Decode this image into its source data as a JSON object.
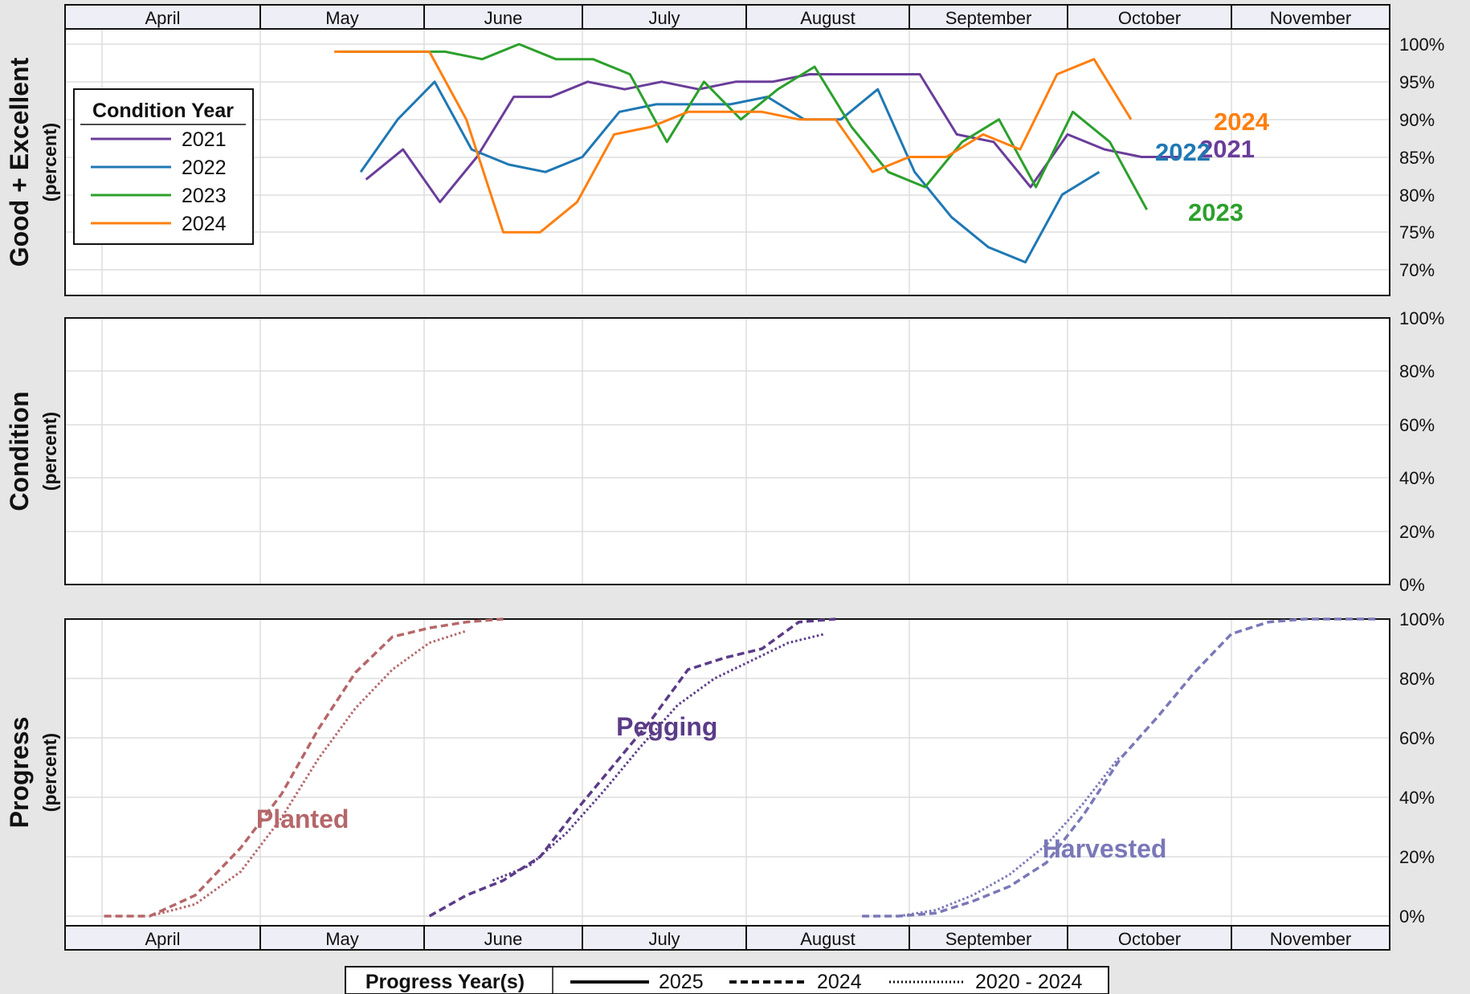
{
  "months": [
    "April",
    "May",
    "June",
    "July",
    "August",
    "September",
    "October",
    "November"
  ],
  "colors": {
    "y2021": "#6a3d9a",
    "y2022": "#1f78b4",
    "y2023": "#2ca02c",
    "y2024": "#ff7f0e",
    "planted": "#b5676a",
    "pegging": "#5b3c88",
    "harvested": "#7a78b8"
  },
  "chart_data": [
    {
      "type": "line",
      "panel": "Good + Excellent",
      "ylabel": "Good + Excellent",
      "ysub": "(percent)",
      "x_unit": "week of season (approx. calendar position)",
      "yticks": [
        "100%",
        "95%",
        "90%",
        "85%",
        "80%",
        "75%",
        "70%"
      ],
      "ytick_values": [
        100,
        95,
        90,
        85,
        80,
        75,
        70
      ],
      "ylim": [
        66.5,
        101.5
      ],
      "grid": true,
      "legend": {
        "title": "Condition Year",
        "position": "top-left",
        "entries": [
          "2021",
          "2022",
          "2023",
          "2024"
        ]
      },
      "series": [
        {
          "name": "2021",
          "color_key": "y2021",
          "end_label": "2021",
          "points": [
            [
              "2021-05-21",
              82
            ],
            [
              "2021-05-28",
              86
            ],
            [
              "2021-06-04",
              79
            ],
            [
              "2021-06-11",
              85
            ],
            [
              "2021-06-18",
              93
            ],
            [
              "2021-06-25",
              93
            ],
            [
              "2021-07-02",
              95
            ],
            [
              "2021-07-09",
              94
            ],
            [
              "2021-07-16",
              95
            ],
            [
              "2021-07-23",
              94
            ],
            [
              "2021-07-30",
              95
            ],
            [
              "2021-08-06",
              95
            ],
            [
              "2021-08-13",
              96
            ],
            [
              "2021-08-20",
              96
            ],
            [
              "2021-08-27",
              96
            ],
            [
              "2021-09-03",
              96
            ],
            [
              "2021-09-10",
              88
            ],
            [
              "2021-09-17",
              87
            ],
            [
              "2021-09-24",
              81
            ],
            [
              "2021-10-01",
              88
            ],
            [
              "2021-10-08",
              86
            ],
            [
              "2021-10-15",
              85
            ],
            [
              "2021-10-22",
              85
            ]
          ]
        },
        {
          "name": "2022",
          "color_key": "y2022",
          "end_label": "2022",
          "points": [
            [
              "2022-05-20",
              83
            ],
            [
              "2022-05-27",
              90
            ],
            [
              "2022-06-03",
              95
            ],
            [
              "2022-06-10",
              86
            ],
            [
              "2022-06-17",
              84
            ],
            [
              "2022-06-24",
              83
            ],
            [
              "2022-07-01",
              85
            ],
            [
              "2022-07-08",
              91
            ],
            [
              "2022-07-15",
              92
            ],
            [
              "2022-07-22",
              92
            ],
            [
              "2022-07-29",
              92
            ],
            [
              "2022-08-05",
              93
            ],
            [
              "2022-08-12",
              90
            ],
            [
              "2022-08-19",
              90
            ],
            [
              "2022-08-26",
              94
            ],
            [
              "2022-09-02",
              83
            ],
            [
              "2022-09-09",
              77
            ],
            [
              "2022-09-16",
              73
            ],
            [
              "2022-09-23",
              71
            ],
            [
              "2022-09-30",
              80
            ],
            [
              "2022-10-07",
              83
            ]
          ]
        },
        {
          "name": "2023",
          "color_key": "y2023",
          "end_label": "2023",
          "points": [
            [
              "2023-05-16",
              99
            ],
            [
              "2023-06-05",
              99
            ],
            [
              "2023-06-12",
              98
            ],
            [
              "2023-06-19",
              100
            ],
            [
              "2023-06-26",
              98
            ],
            [
              "2023-07-03",
              98
            ],
            [
              "2023-07-10",
              96
            ],
            [
              "2023-07-17",
              87
            ],
            [
              "2023-07-24",
              95
            ],
            [
              "2023-07-31",
              90
            ],
            [
              "2023-08-07",
              94
            ],
            [
              "2023-08-14",
              97
            ],
            [
              "2023-08-21",
              89
            ],
            [
              "2023-08-28",
              83
            ],
            [
              "2023-09-04",
              81
            ],
            [
              "2023-09-11",
              87
            ],
            [
              "2023-09-18",
              90
            ],
            [
              "2023-09-25",
              81
            ],
            [
              "2023-10-02",
              91
            ],
            [
              "2023-10-09",
              87
            ],
            [
              "2023-10-16",
              78
            ]
          ]
        },
        {
          "name": "2024",
          "color_key": "y2024",
          "end_label": "2024",
          "points": [
            [
              "2024-05-15",
              99
            ],
            [
              "2024-06-02",
              99
            ],
            [
              "2024-06-09",
              90
            ],
            [
              "2024-06-16",
              75
            ],
            [
              "2024-06-23",
              75
            ],
            [
              "2024-06-30",
              79
            ],
            [
              "2024-07-07",
              88
            ],
            [
              "2024-07-14",
              89
            ],
            [
              "2024-07-21",
              91
            ],
            [
              "2024-07-28",
              91
            ],
            [
              "2024-08-04",
              91
            ],
            [
              "2024-08-11",
              90
            ],
            [
              "2024-08-18",
              90
            ],
            [
              "2024-08-25",
              83
            ],
            [
              "2024-09-01",
              85
            ],
            [
              "2024-09-08",
              85
            ],
            [
              "2024-09-15",
              88
            ],
            [
              "2024-09-22",
              86
            ],
            [
              "2024-09-29",
              96
            ],
            [
              "2024-10-06",
              98
            ],
            [
              "2024-10-13",
              90
            ]
          ]
        }
      ]
    },
    {
      "type": "line",
      "panel": "Condition",
      "ylabel": "Condition",
      "ysub": "(percent)",
      "yticks": [
        "100%",
        "80%",
        "60%",
        "40%",
        "20%",
        "0%"
      ],
      "ytick_values": [
        100,
        80,
        60,
        40,
        20,
        0
      ],
      "ylim": [
        0,
        100
      ],
      "grid": true,
      "series": []
    },
    {
      "type": "line",
      "panel": "Progress",
      "ylabel": "Progress",
      "ysub": "(percent)",
      "yticks": [
        "100%",
        "80%",
        "60%",
        "40%",
        "20%",
        "0%"
      ],
      "ytick_values": [
        100,
        80,
        60,
        40,
        20,
        0
      ],
      "ylim": [
        -3.5,
        100
      ],
      "grid": true,
      "legend": {
        "title": "Progress Year(s)",
        "position": "bottom-center",
        "entries": [
          {
            "label": "2025",
            "style": "solid"
          },
          {
            "label": "2024",
            "style": "dashed"
          },
          {
            "label": "2020 - 2024",
            "style": "dotted"
          }
        ]
      },
      "labels": [
        {
          "text": "Planted",
          "color_key": "planted",
          "x": "2024-05-09",
          "y": 33
        },
        {
          "text": "Pegging",
          "color_key": "pegging",
          "x": "2024-07-17",
          "y": 64
        },
        {
          "text": "Harvested",
          "color_key": "harvested",
          "x": "2024-10-08",
          "y": 23
        }
      ],
      "series": [
        {
          "name": "Planted",
          "year": "2024",
          "style": "dashed",
          "color_key": "planted",
          "points": [
            [
              "2024-04-07",
              0
            ],
            [
              "2024-04-14",
              0
            ],
            [
              "2024-04-21",
              7
            ],
            [
              "2024-04-28",
              23
            ],
            [
              "2024-05-05",
              41
            ],
            [
              "2024-05-12",
              63
            ],
            [
              "2024-05-19",
              82
            ],
            [
              "2024-05-26",
              94
            ],
            [
              "2024-06-02",
              97
            ],
            [
              "2024-06-09",
              99
            ],
            [
              "2024-06-16",
              100
            ]
          ]
        },
        {
          "name": "Planted",
          "year": "2020 - 2024",
          "style": "dotted",
          "color_key": "planted",
          "points": [
            [
              "2024-04-14",
              0
            ],
            [
              "2024-04-21",
              4
            ],
            [
              "2024-04-28",
              15
            ],
            [
              "2024-05-05",
              33
            ],
            [
              "2024-05-12",
              53
            ],
            [
              "2024-05-19",
              70
            ],
            [
              "2024-05-26",
              83
            ],
            [
              "2024-06-02",
              92
            ],
            [
              "2024-06-09",
              96
            ]
          ]
        },
        {
          "name": "Pegging",
          "year": "2024",
          "style": "dashed",
          "color_key": "pegging",
          "points": [
            [
              "2024-06-02",
              0
            ],
            [
              "2024-06-09",
              7
            ],
            [
              "2024-06-16",
              12
            ],
            [
              "2024-06-23",
              20
            ],
            [
              "2024-06-30",
              36
            ],
            [
              "2024-07-07",
              51
            ],
            [
              "2024-07-14",
              66
            ],
            [
              "2024-07-21",
              83
            ],
            [
              "2024-07-28",
              87
            ],
            [
              "2024-08-04",
              90
            ],
            [
              "2024-08-11",
              99
            ],
            [
              "2024-08-18",
              100
            ]
          ]
        },
        {
          "name": "Pegging",
          "year": "2020 - 2024",
          "style": "dotted",
          "color_key": "pegging",
          "points": [
            [
              "2024-06-14",
              12
            ],
            [
              "2024-06-21",
              17
            ],
            [
              "2024-06-28",
              28
            ],
            [
              "2024-07-05",
              42
            ],
            [
              "2024-07-12",
              57
            ],
            [
              "2024-07-19",
              71
            ],
            [
              "2024-07-26",
              80
            ],
            [
              "2024-08-02",
              86
            ],
            [
              "2024-08-09",
              92
            ],
            [
              "2024-08-16",
              95
            ]
          ]
        },
        {
          "name": "Harvested",
          "year": "2024",
          "style": "dashed",
          "color_key": "harvested",
          "points": [
            [
              "2024-08-23",
              0
            ],
            [
              "2024-08-30",
              0
            ],
            [
              "2024-09-06",
              1
            ],
            [
              "2024-09-13",
              5
            ],
            [
              "2024-09-20",
              10
            ],
            [
              "2024-09-27",
              18
            ],
            [
              "2024-10-04",
              34
            ],
            [
              "2024-10-11",
              53
            ],
            [
              "2024-10-18",
              67
            ],
            [
              "2024-10-25",
              82
            ],
            [
              "2024-11-01",
              95
            ],
            [
              "2024-11-08",
              99
            ],
            [
              "2024-11-15",
              100
            ],
            [
              "2024-11-22",
              100
            ],
            [
              "2024-11-29",
              100
            ]
          ]
        },
        {
          "name": "Harvested",
          "year": "2020 - 2024",
          "style": "dotted",
          "color_key": "harvested",
          "points": [
            [
              "2024-08-30",
              0
            ],
            [
              "2024-09-06",
              2
            ],
            [
              "2024-09-13",
              7
            ],
            [
              "2024-09-20",
              14
            ],
            [
              "2024-09-27",
              24
            ],
            [
              "2024-10-04",
              38
            ],
            [
              "2024-10-11",
              54
            ]
          ]
        }
      ]
    }
  ]
}
